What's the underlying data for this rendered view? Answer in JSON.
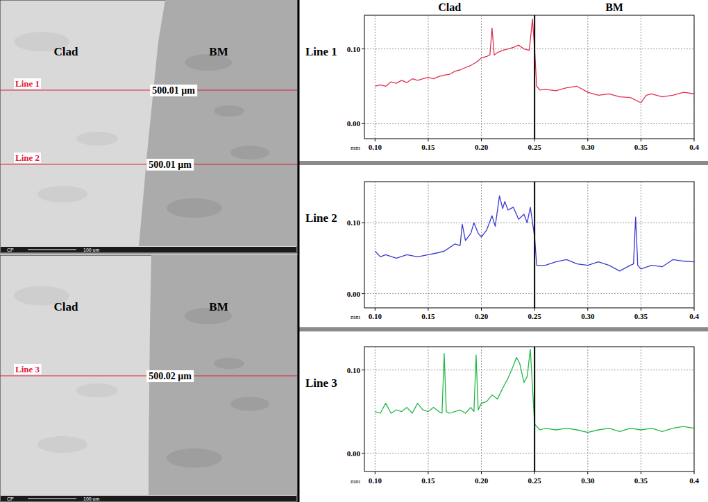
{
  "profile_header": {
    "labels": [
      "Clad",
      "BM"
    ]
  },
  "micrographs": [
    {
      "labels": [
        "Clad",
        "BM"
      ],
      "lines": [
        {
          "label": "Line 1",
          "length": "500.01 µm"
        },
        {
          "label": "Line 2",
          "length": "500.01 µm"
        }
      ],
      "detector": "CP",
      "scale_bar": "100 um"
    },
    {
      "labels": [
        "Clad",
        "BM"
      ],
      "lines": [
        {
          "label": "Line 3",
          "length": "500.02 µm"
        }
      ],
      "detector": "CP",
      "scale_bar": "100 um"
    }
  ],
  "chart_data": [
    {
      "type": "line",
      "title": "Line 1",
      "x_label": "mm",
      "color": "#e2304e",
      "grid": true,
      "boundary": 0.25,
      "xlim": [
        0.09,
        0.4
      ],
      "xticks": [
        {
          "value": 0.1,
          "label": "0.10"
        },
        {
          "value": 0.15,
          "label": "0.15"
        },
        {
          "value": 0.2,
          "label": "0.20"
        },
        {
          "value": 0.25,
          "label": "0.25"
        },
        {
          "value": 0.3,
          "label": "0.30"
        },
        {
          "value": 0.35,
          "label": "0.35"
        },
        0.4
      ],
      "ylim": [
        -0.02,
        0.145
      ],
      "yticks": [
        {
          "value": 0,
          "label": "0.00"
        },
        {
          "value": 0.1,
          "label": "0.10"
        }
      ],
      "x": [
        0.1,
        0.105,
        0.11,
        0.115,
        0.12,
        0.125,
        0.13,
        0.135,
        0.14,
        0.145,
        0.15,
        0.155,
        0.16,
        0.165,
        0.17,
        0.175,
        0.18,
        0.185,
        0.19,
        0.195,
        0.2,
        0.205,
        0.208,
        0.21,
        0.212,
        0.215,
        0.22,
        0.225,
        0.23,
        0.235,
        0.24,
        0.245,
        0.248,
        0.25,
        0.252,
        0.255,
        0.26,
        0.27,
        0.28,
        0.29,
        0.3,
        0.31,
        0.32,
        0.33,
        0.34,
        0.35,
        0.355,
        0.36,
        0.37,
        0.38,
        0.39,
        0.4
      ],
      "values": [
        0.05,
        0.052,
        0.05,
        0.056,
        0.054,
        0.058,
        0.055,
        0.06,
        0.058,
        0.06,
        0.062,
        0.06,
        0.063,
        0.065,
        0.066,
        0.07,
        0.072,
        0.075,
        0.078,
        0.082,
        0.088,
        0.09,
        0.092,
        0.128,
        0.092,
        0.095,
        0.098,
        0.1,
        0.102,
        0.105,
        0.1,
        0.098,
        0.14,
        0.1,
        0.05,
        0.045,
        0.046,
        0.044,
        0.048,
        0.05,
        0.042,
        0.038,
        0.04,
        0.036,
        0.035,
        0.028,
        0.038,
        0.04,
        0.036,
        0.038,
        0.042,
        0.04
      ]
    },
    {
      "type": "line",
      "title": "Line 2",
      "x_label": "mm",
      "color": "#3a3ad0",
      "grid": true,
      "boundary": 0.25,
      "xlim": [
        0.09,
        0.4
      ],
      "xticks": [
        {
          "value": 0.1,
          "label": "0.10"
        },
        {
          "value": 0.15,
          "label": "0.15"
        },
        {
          "value": 0.2,
          "label": "0.20"
        },
        {
          "value": 0.25,
          "label": "0.25"
        },
        {
          "value": 0.3,
          "label": "0.30"
        },
        {
          "value": 0.35,
          "label": "0.35"
        },
        0.4
      ],
      "ylim": [
        -0.02,
        0.158
      ],
      "yticks": [
        {
          "value": 0,
          "label": "0.00"
        },
        {
          "value": 0.1,
          "label": "0.10"
        }
      ],
      "x": [
        0.1,
        0.105,
        0.11,
        0.12,
        0.13,
        0.14,
        0.15,
        0.16,
        0.165,
        0.17,
        0.175,
        0.18,
        0.182,
        0.185,
        0.19,
        0.193,
        0.197,
        0.2,
        0.205,
        0.21,
        0.213,
        0.217,
        0.22,
        0.222,
        0.225,
        0.23,
        0.235,
        0.24,
        0.243,
        0.246,
        0.25,
        0.252,
        0.26,
        0.27,
        0.28,
        0.29,
        0.3,
        0.31,
        0.32,
        0.33,
        0.34,
        0.343,
        0.345,
        0.347,
        0.35,
        0.36,
        0.37,
        0.38,
        0.39,
        0.4
      ],
      "values": [
        0.06,
        0.052,
        0.055,
        0.05,
        0.055,
        0.052,
        0.055,
        0.058,
        0.06,
        0.065,
        0.07,
        0.068,
        0.098,
        0.075,
        0.085,
        0.1,
        0.085,
        0.08,
        0.09,
        0.11,
        0.095,
        0.138,
        0.12,
        0.13,
        0.118,
        0.122,
        0.105,
        0.112,
        0.1,
        0.122,
        0.08,
        0.04,
        0.04,
        0.045,
        0.048,
        0.042,
        0.04,
        0.045,
        0.04,
        0.032,
        0.04,
        0.042,
        0.108,
        0.04,
        0.035,
        0.04,
        0.038,
        0.048,
        0.046,
        0.045
      ]
    },
    {
      "type": "line",
      "title": "Line 3",
      "x_label": "mm",
      "color": "#22b848",
      "grid": true,
      "boundary": 0.25,
      "xlim": [
        0.09,
        0.4
      ],
      "xticks": [
        {
          "value": 0.1,
          "label": "0.10"
        },
        {
          "value": 0.15,
          "label": "0.15"
        },
        {
          "value": 0.2,
          "label": "0.20"
        },
        {
          "value": 0.25,
          "label": "0.25"
        },
        {
          "value": 0.3,
          "label": "0.30"
        },
        {
          "value": 0.35,
          "label": "0.35"
        },
        0.4
      ],
      "ylim": [
        -0.022,
        0.128
      ],
      "yticks": [
        {
          "value": 0,
          "label": "0.00"
        },
        {
          "value": 0.1,
          "label": "0.10"
        }
      ],
      "x": [
        0.1,
        0.105,
        0.11,
        0.115,
        0.12,
        0.125,
        0.13,
        0.135,
        0.14,
        0.145,
        0.15,
        0.155,
        0.16,
        0.163,
        0.165,
        0.167,
        0.17,
        0.175,
        0.18,
        0.185,
        0.19,
        0.193,
        0.195,
        0.197,
        0.2,
        0.205,
        0.21,
        0.215,
        0.22,
        0.225,
        0.23,
        0.233,
        0.236,
        0.24,
        0.243,
        0.246,
        0.248,
        0.25,
        0.255,
        0.26,
        0.27,
        0.28,
        0.29,
        0.3,
        0.31,
        0.32,
        0.33,
        0.34,
        0.35,
        0.36,
        0.37,
        0.38,
        0.39,
        0.4
      ],
      "values": [
        0.05,
        0.048,
        0.06,
        0.048,
        0.052,
        0.05,
        0.055,
        0.048,
        0.06,
        0.052,
        0.05,
        0.055,
        0.05,
        0.048,
        0.12,
        0.05,
        0.048,
        0.05,
        0.052,
        0.048,
        0.055,
        0.05,
        0.118,
        0.052,
        0.06,
        0.062,
        0.07,
        0.065,
        0.078,
        0.09,
        0.105,
        0.115,
        0.108,
        0.085,
        0.092,
        0.125,
        0.08,
        0.035,
        0.028,
        0.03,
        0.028,
        0.03,
        0.028,
        0.025,
        0.028,
        0.03,
        0.026,
        0.03,
        0.028,
        0.03,
        0.026,
        0.03,
        0.032,
        0.03
      ]
    }
  ]
}
